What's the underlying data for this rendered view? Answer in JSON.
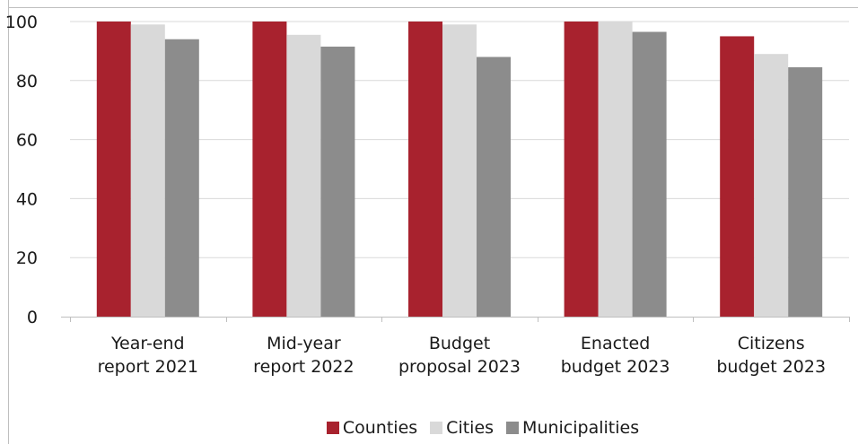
{
  "chart_data": {
    "type": "bar",
    "categories": [
      [
        "Year-end",
        "report 2021"
      ],
      [
        "Mid-year",
        "report 2022"
      ],
      [
        "Budget",
        "proposal 2023"
      ],
      [
        "Enacted",
        "budget 2023"
      ],
      [
        "Citizens",
        "budget 2023"
      ]
    ],
    "series": [
      {
        "name": "Counties",
        "color": "#a8222e",
        "values": [
          100,
          100,
          100,
          100,
          95
        ]
      },
      {
        "name": "Cities",
        "color": "#d9d9d9",
        "values": [
          99,
          95.5,
          99,
          100,
          89
        ]
      },
      {
        "name": "Municipalities",
        "color": "#8c8c8c",
        "values": [
          94,
          91.5,
          88,
          96.5,
          84.5
        ]
      }
    ],
    "ylim": [
      0,
      100
    ],
    "yticks": [
      0,
      20,
      40,
      60,
      80,
      100
    ],
    "grid": true,
    "legend_position": "bottom"
  }
}
